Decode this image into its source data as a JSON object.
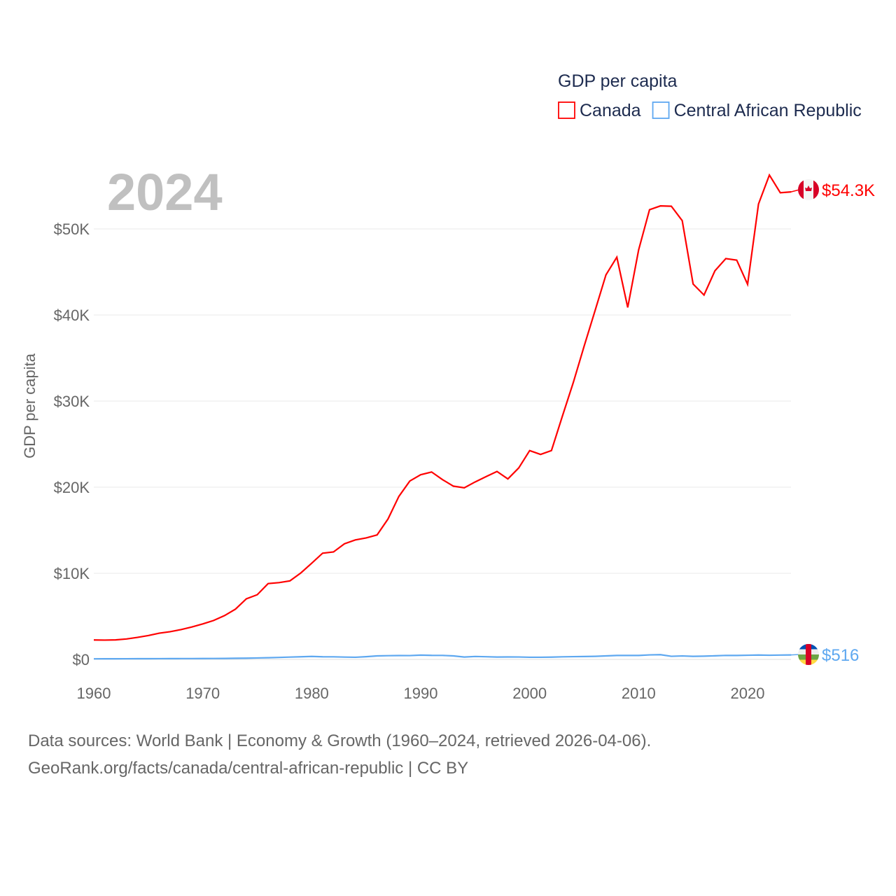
{
  "chart_data": {
    "type": "line",
    "title": "GDP per capita",
    "year_label": "2024",
    "ylabel": "GDP per capita",
    "xlim": [
      1960,
      2024
    ],
    "ylim": [
      0,
      57000
    ],
    "xticks": [
      "1960",
      "1970",
      "1980",
      "1990",
      "2000",
      "2010",
      "2020"
    ],
    "yticks": [
      {
        "v": 0,
        "label": "$0"
      },
      {
        "v": 10000,
        "label": "$10K"
      },
      {
        "v": 20000,
        "label": "$20K"
      },
      {
        "v": 30000,
        "label": "$30K"
      },
      {
        "v": 40000,
        "label": "$40K"
      },
      {
        "v": 50000,
        "label": "$50K"
      }
    ],
    "grid": true,
    "legend_position": "top-right",
    "start_year": 1960,
    "series": [
      {
        "name": "Canada",
        "color": "#ff0000",
        "end_label": "$54.3K",
        "flag": "canada-flag",
        "values": [
          2259,
          2240,
          2269,
          2374,
          2555,
          2770,
          3047,
          3217,
          3462,
          3763,
          4122,
          4520,
          5089,
          5838,
          7033,
          7511,
          8809,
          8919,
          9124,
          10044,
          11171,
          12338,
          12482,
          13425,
          13878,
          14114,
          14461,
          16309,
          18937,
          20716,
          21448,
          21768,
          20880,
          20121,
          19935,
          20614,
          21227,
          21830,
          20960,
          22242,
          24253,
          23807,
          24258,
          28242,
          32143,
          36383,
          40505,
          44660,
          46711,
          40876,
          47562,
          52224,
          52670,
          52635,
          50956,
          43596,
          42316,
          45129,
          46549,
          46374,
          43562,
          52887,
          56256,
          54200,
          54300
        ]
      },
      {
        "name": "Central African Republic",
        "color": "#5ea8f0",
        "end_label": "$516",
        "flag": "central-african-republic-flag",
        "values": [
          67,
          71,
          74,
          75,
          79,
          82,
          85,
          89,
          96,
          98,
          100,
          105,
          111,
          132,
          143,
          167,
          195,
          229,
          271,
          307,
          343,
          302,
          299,
          268,
          247,
          317,
          409,
          433,
          447,
          444,
          498,
          465,
          461,
          408,
          275,
          339,
          310,
          277,
          282,
          280,
          248,
          250,
          266,
          300,
          322,
          333,
          356,
          405,
          460,
          455,
          457,
          525,
          547,
          362,
          401,
          353,
          373,
          419,
          464,
          455,
          483,
          506,
          482,
          503,
          516
        ]
      }
    ]
  },
  "footer": {
    "line1": "Data sources: World Bank | Economy & Growth (1960–2024, retrieved 2026-04-06).",
    "line2": "GeoRank.org/facts/canada/central-african-republic | CC BY"
  }
}
